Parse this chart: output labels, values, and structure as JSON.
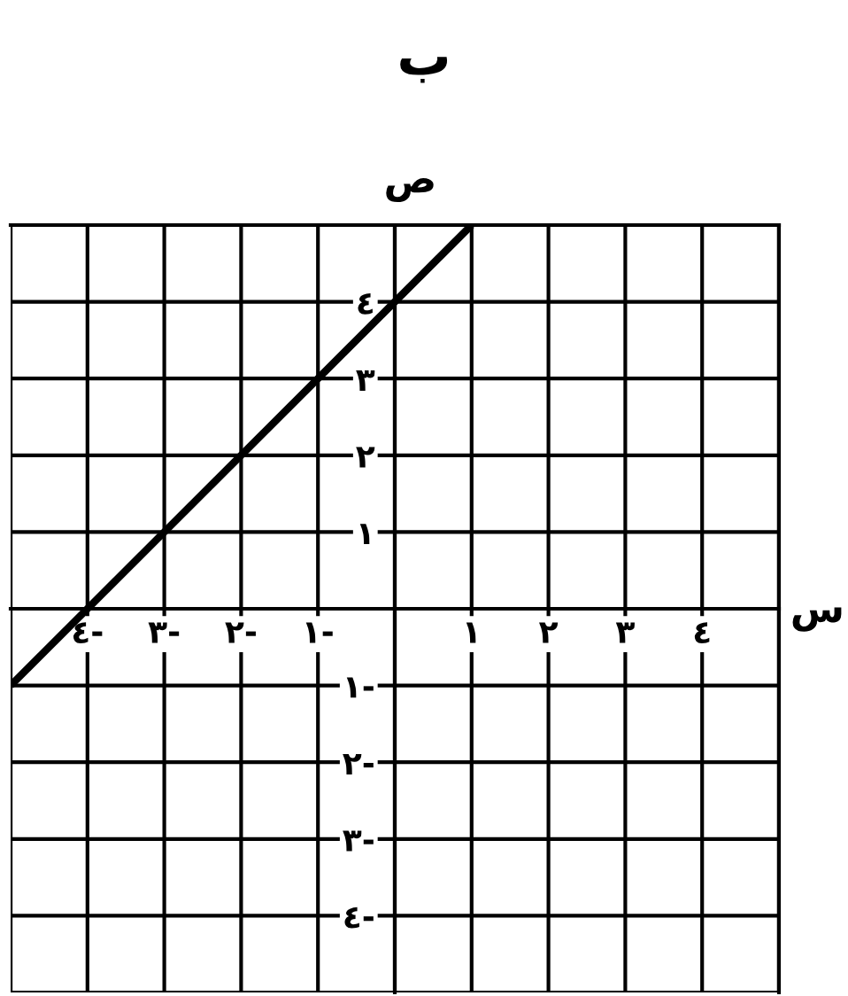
{
  "chart_data": {
    "type": "line",
    "title": "ب",
    "xlabel": "س",
    "ylabel": "ص",
    "series": [
      {
        "color": "#000000",
        "x": [
          -5,
          1
        ],
        "values": [
          -1,
          5
        ]
      }
    ],
    "xlim": [
      -5,
      5
    ],
    "ylim": [
      -5,
      5
    ],
    "xticks": [
      {
        "value": -5,
        "label": null
      },
      {
        "value": -4,
        "label": "٤-"
      },
      {
        "value": -3,
        "label": "٣-"
      },
      {
        "value": -2,
        "label": "٢-"
      },
      {
        "value": -1,
        "label": "١-"
      },
      {
        "value": 0,
        "label": null
      },
      {
        "value": 1,
        "label": "١"
      },
      {
        "value": 2,
        "label": "٢"
      },
      {
        "value": 3,
        "label": "٣"
      },
      {
        "value": 4,
        "label": "٤"
      },
      {
        "value": 5,
        "label": null
      }
    ],
    "yticks": [
      {
        "value": -5,
        "label": null
      },
      {
        "value": -4,
        "label": "٤-"
      },
      {
        "value": -3,
        "label": "٣-"
      },
      {
        "value": -2,
        "label": "٢-"
      },
      {
        "value": -1,
        "label": "١-"
      },
      {
        "value": 0,
        "label": null
      },
      {
        "value": 1,
        "label": "١"
      },
      {
        "value": 2,
        "label": "٢"
      },
      {
        "value": 3,
        "label": "٣"
      },
      {
        "value": 4,
        "label": "٤"
      },
      {
        "value": 5,
        "label": null
      }
    ],
    "grid": true,
    "marker": "none",
    "line_style": "solid",
    "legend": false
  }
}
